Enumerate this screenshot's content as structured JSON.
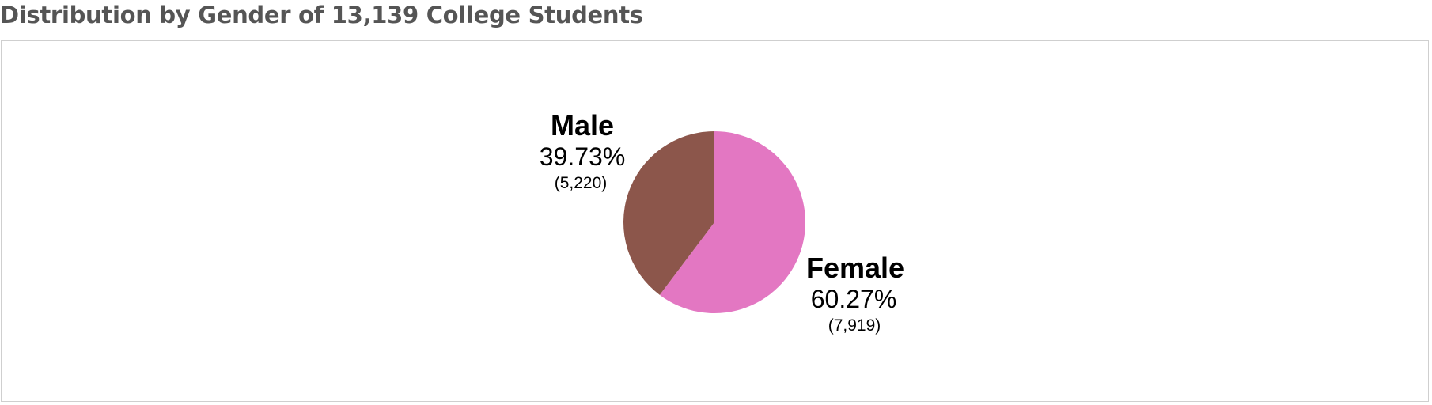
{
  "title": "Distribution by Gender of 13,139 College Students",
  "chart_data": {
    "type": "pie",
    "title": "Distribution by Gender of 13,139 College Students",
    "total": 13139,
    "slices": [
      {
        "label": "Female",
        "percent_text": "60.27%",
        "count_text": "(7,919)",
        "value": 7919,
        "percent": 60.27,
        "color": "#E377C2"
      },
      {
        "label": "Male",
        "percent_text": "39.73%",
        "count_text": "(5,220)",
        "value": 5220,
        "percent": 39.73,
        "color": "#8C564B"
      }
    ],
    "start_angle": "12 o'clock",
    "direction": "clockwise",
    "legend": "none"
  }
}
